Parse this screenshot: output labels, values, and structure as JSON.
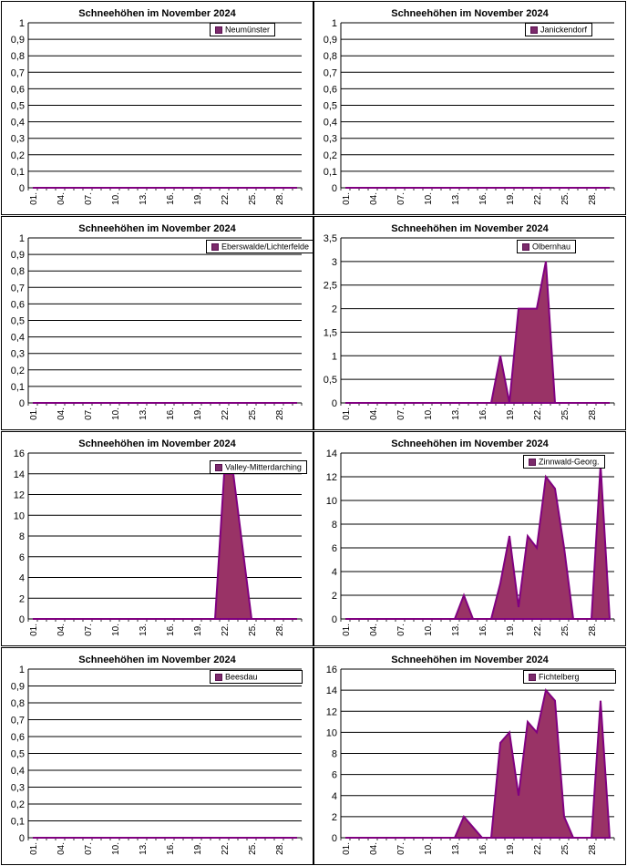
{
  "colors": {
    "area_fill": "#993366",
    "area_line": "#800080",
    "grid": "#000000"
  },
  "chart_data": [
    {
      "type": "area",
      "title": "Schneehöhen im November 2024",
      "xticks": [
        "01.",
        "04.",
        "07.",
        "10.",
        "13.",
        "16.",
        "19.",
        "22.",
        "25.",
        "28."
      ],
      "yticks": [
        "0",
        "0,1",
        "0,2",
        "0,3",
        "0,4",
        "0,5",
        "0,6",
        "0,7",
        "0,8",
        "0,9",
        "1"
      ],
      "ylim": [
        0,
        1
      ],
      "series": [
        {
          "name": "Neumünster",
          "values": [
            0,
            0,
            0,
            0,
            0,
            0,
            0,
            0,
            0,
            0,
            0,
            0,
            0,
            0,
            0,
            0,
            0,
            0,
            0,
            0,
            0,
            0,
            0,
            0,
            0,
            0,
            0,
            0,
            0,
            0
          ]
        }
      ]
    },
    {
      "type": "area",
      "title": "Schneehöhen im November 2024",
      "xticks": [
        "01.",
        "04.",
        "07.",
        "10.",
        "13.",
        "16.",
        "19.",
        "22.",
        "25.",
        "28."
      ],
      "yticks": [
        "0",
        "0,1",
        "0,2",
        "0,3",
        "0,4",
        "0,5",
        "0,6",
        "0,7",
        "0,8",
        "0,9",
        "1"
      ],
      "ylim": [
        0,
        1
      ],
      "series": [
        {
          "name": "Janickendorf",
          "values": [
            0,
            0,
            0,
            0,
            0,
            0,
            0,
            0,
            0,
            0,
            0,
            0,
            0,
            0,
            0,
            0,
            0,
            0,
            0,
            0,
            0,
            0,
            0,
            0,
            0,
            0,
            0,
            0,
            0,
            0
          ]
        }
      ]
    },
    {
      "type": "area",
      "title": "Schneehöhen im November 2024",
      "xticks": [
        "01.",
        "04.",
        "07.",
        "10.",
        "13.",
        "16.",
        "19.",
        "22.",
        "25.",
        "28."
      ],
      "yticks": [
        "0",
        "0,1",
        "0,2",
        "0,3",
        "0,4",
        "0,5",
        "0,6",
        "0,7",
        "0,8",
        "0,9",
        "1"
      ],
      "ylim": [
        0,
        1
      ],
      "series": [
        {
          "name": "Eberswalde/Lichterfelde",
          "values": [
            0,
            0,
            0,
            0,
            0,
            0,
            0,
            0,
            0,
            0,
            0,
            0,
            0,
            0,
            0,
            0,
            0,
            0,
            0,
            0,
            0,
            0,
            0,
            0,
            0,
            0,
            0,
            0,
            0,
            0
          ]
        }
      ]
    },
    {
      "type": "area",
      "title": "Schneehöhen im November 2024",
      "xticks": [
        "01.",
        "04.",
        "07.",
        "10.",
        "13.",
        "16.",
        "19.",
        "22.",
        "25.",
        "28."
      ],
      "yticks": [
        "0",
        "0,5",
        "1",
        "1,5",
        "2",
        "2,5",
        "3",
        "3,5"
      ],
      "ylim": [
        0,
        3.5
      ],
      "series": [
        {
          "name": "Olbernhau",
          "values": [
            0,
            0,
            0,
            0,
            0,
            0,
            0,
            0,
            0,
            0,
            0,
            0,
            0,
            0,
            0,
            0,
            0,
            1,
            0,
            2,
            2,
            2,
            3,
            0,
            0,
            0,
            0,
            0,
            0,
            0
          ]
        }
      ]
    },
    {
      "type": "area",
      "title": "Schneehöhen im November 2024",
      "xticks": [
        "01.",
        "04.",
        "07.",
        "10.",
        "13.",
        "16.",
        "19.",
        "22.",
        "25.",
        "28."
      ],
      "yticks": [
        "0",
        "2",
        "4",
        "6",
        "8",
        "10",
        "12",
        "14",
        "16"
      ],
      "ylim": [
        0,
        16
      ],
      "series": [
        {
          "name": "Valley-Mitterdarching",
          "values": [
            0,
            0,
            0,
            0,
            0,
            0,
            0,
            0,
            0,
            0,
            0,
            0,
            0,
            0,
            0,
            0,
            0,
            0,
            0,
            0,
            0,
            14,
            14,
            7,
            0,
            0,
            0,
            0,
            0,
            0
          ]
        }
      ]
    },
    {
      "type": "area",
      "title": "Schneehöhen im November 2024",
      "xticks": [
        "01.",
        "04.",
        "07.",
        "10.",
        "13.",
        "16.",
        "19.",
        "22.",
        "25.",
        "28."
      ],
      "yticks": [
        "0",
        "2",
        "4",
        "6",
        "8",
        "10",
        "12",
        "14"
      ],
      "ylim": [
        0,
        14
      ],
      "series": [
        {
          "name": "Zinnwald-Georg.",
          "values": [
            0,
            0,
            0,
            0,
            0,
            0,
            0,
            0,
            0,
            0,
            0,
            0,
            0,
            2,
            0,
            0,
            0,
            3,
            7,
            1,
            7,
            6,
            12,
            11,
            6,
            0,
            0,
            0,
            13,
            0
          ]
        }
      ]
    },
    {
      "type": "area",
      "title": "Schneehöhen im November 2024",
      "xticks": [
        "01.",
        "04.",
        "07.",
        "10.",
        "13.",
        "16.",
        "19.",
        "22.",
        "25.",
        "28."
      ],
      "yticks": [
        "0",
        "0,1",
        "0,2",
        "0,3",
        "0,4",
        "0,5",
        "0,6",
        "0,7",
        "0,8",
        "0,9",
        "1"
      ],
      "ylim": [
        0,
        1
      ],
      "series": [
        {
          "name": "Beesdau",
          "values": [
            0,
            0,
            0,
            0,
            0,
            0,
            0,
            0,
            0,
            0,
            0,
            0,
            0,
            0,
            0,
            0,
            0,
            0,
            0,
            0,
            0,
            0,
            0,
            0,
            0,
            0,
            0,
            0,
            0,
            0
          ]
        }
      ]
    },
    {
      "type": "area",
      "title": "Schneehöhen im November 2024",
      "xticks": [
        "01.",
        "04.",
        "07.",
        "10.",
        "13.",
        "16.",
        "19.",
        "22.",
        "25.",
        "28."
      ],
      "yticks": [
        "0",
        "2",
        "4",
        "6",
        "8",
        "10",
        "12",
        "14",
        "16"
      ],
      "ylim": [
        0,
        16
      ],
      "series": [
        {
          "name": "Fichtelberg",
          "values": [
            0,
            0,
            0,
            0,
            0,
            0,
            0,
            0,
            0,
            0,
            0,
            0,
            0,
            2,
            1,
            0,
            0,
            9,
            10,
            4,
            11,
            10,
            14,
            13,
            2,
            0,
            0,
            0,
            13,
            0
          ]
        }
      ]
    }
  ]
}
